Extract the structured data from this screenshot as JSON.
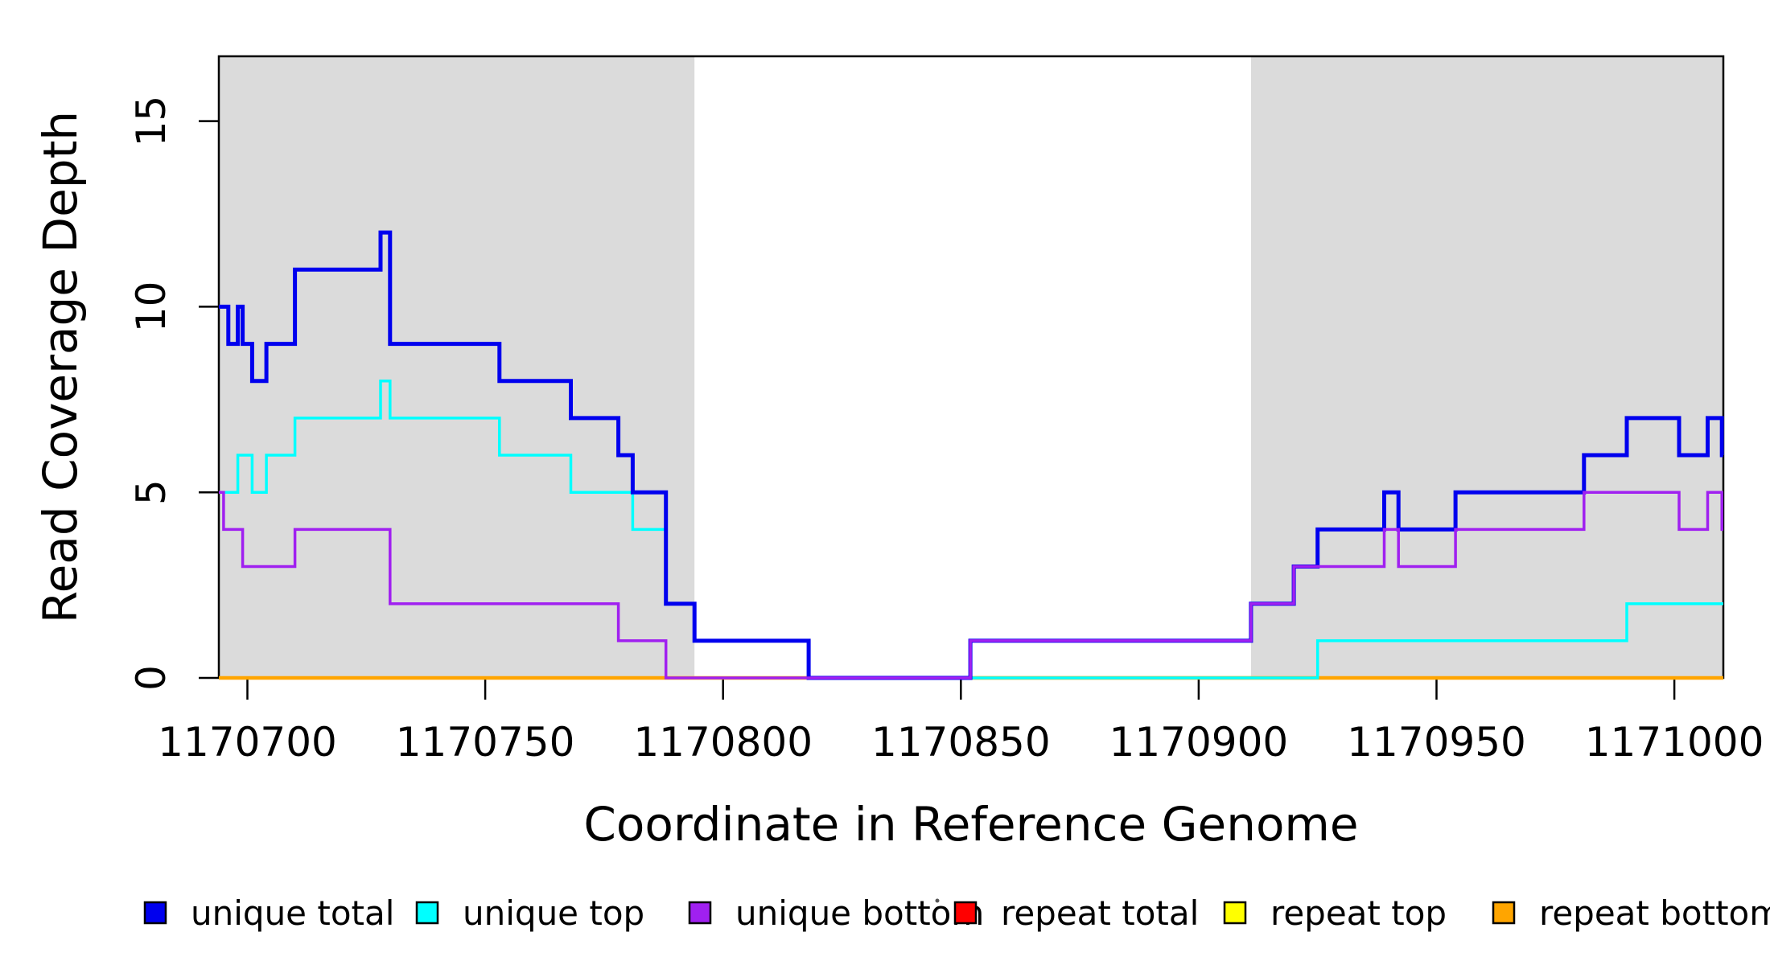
{
  "chart_data": {
    "type": "line",
    "subtype": "step",
    "title": "",
    "xlabel": "Coordinate in Reference Genome",
    "ylabel": "Read Coverage Depth",
    "xlim": [
      1170694,
      1171010.3
    ],
    "ylim": [
      0,
      16.7
    ],
    "x_end": 1171010.3,
    "x_ticks": [
      1170700,
      1170750,
      1170800,
      1170850,
      1170900,
      1170950,
      1171000
    ],
    "y_ticks": [
      0,
      5,
      10,
      15
    ],
    "grid": false,
    "legend_position": "bottom",
    "colors": {
      "shaded_region": "#dbdbdb",
      "axis": "#000000",
      "background": "#ffffff"
    },
    "shaded_regions": [
      {
        "from": 1170694,
        "to": 1170794
      },
      {
        "from": 1170911,
        "to": 1171010.3
      }
    ],
    "series": [
      {
        "id": "unique_total",
        "name": "unique total",
        "color": "#0000ee",
        "width": 5,
        "steps": [
          [
            1170694,
            10
          ],
          [
            1170696,
            9
          ],
          [
            1170698,
            10
          ],
          [
            1170699,
            9
          ],
          [
            1170701,
            8
          ],
          [
            1170704,
            9
          ],
          [
            1170710,
            11
          ],
          [
            1170728,
            12
          ],
          [
            1170730,
            9
          ],
          [
            1170753,
            8
          ],
          [
            1170768,
            7
          ],
          [
            1170778,
            6
          ],
          [
            1170781,
            5
          ],
          [
            1170788,
            2
          ],
          [
            1170794,
            1
          ],
          [
            1170818,
            0
          ],
          [
            1170852,
            1
          ],
          [
            1170911,
            2
          ],
          [
            1170920,
            3
          ],
          [
            1170925,
            4
          ],
          [
            1170939,
            5
          ],
          [
            1170942,
            4
          ],
          [
            1170954,
            5
          ],
          [
            1170981,
            6
          ],
          [
            1170990,
            7
          ],
          [
            1171001,
            6
          ],
          [
            1171007,
            7
          ],
          [
            1171010,
            6
          ]
        ]
      },
      {
        "id": "unique_top",
        "name": "unique top",
        "color": "#00ffff",
        "width": 3.5,
        "steps": [
          [
            1170694,
            5
          ],
          [
            1170698,
            6
          ],
          [
            1170701,
            5
          ],
          [
            1170704,
            6
          ],
          [
            1170710,
            7
          ],
          [
            1170728,
            8
          ],
          [
            1170730,
            7
          ],
          [
            1170753,
            6
          ],
          [
            1170768,
            5
          ],
          [
            1170781,
            4
          ],
          [
            1170788,
            2
          ],
          [
            1170794,
            1
          ],
          [
            1170818,
            0
          ],
          [
            1170925,
            1
          ],
          [
            1170990,
            2
          ]
        ]
      },
      {
        "id": "unique_bottom",
        "name": "unique bottom",
        "color": "#a020f0",
        "width": 3.5,
        "steps": [
          [
            1170694,
            5
          ],
          [
            1170695,
            4
          ],
          [
            1170699,
            3
          ],
          [
            1170710,
            4
          ],
          [
            1170730,
            2
          ],
          [
            1170778,
            1
          ],
          [
            1170788,
            0
          ],
          [
            1170852,
            1
          ],
          [
            1170911,
            2
          ],
          [
            1170920,
            3
          ],
          [
            1170939,
            4
          ],
          [
            1170942,
            3
          ],
          [
            1170954,
            4
          ],
          [
            1170981,
            5
          ],
          [
            1171001,
            4
          ],
          [
            1171007,
            5
          ],
          [
            1171010,
            4
          ]
        ]
      },
      {
        "id": "repeat_total",
        "name": "repeat total",
        "color": "#ff0000",
        "width": 3,
        "steps": [
          [
            1170694,
            0
          ]
        ]
      },
      {
        "id": "repeat_top",
        "name": "repeat top",
        "color": "#ffff00",
        "width": 3,
        "steps": [
          [
            1170694,
            0
          ]
        ]
      },
      {
        "id": "repeat_bottom",
        "name": "repeat bottom",
        "color": "#ffa500",
        "width": 4.5,
        "steps": [
          [
            1170694,
            0
          ]
        ]
      }
    ],
    "draw_order": [
      "repeat_total",
      "repeat_top",
      "repeat_bottom",
      "unique_top",
      "unique_total",
      "unique_bottom"
    ],
    "legend": {
      "items": [
        {
          "label": "unique total",
          "color": "#0000ee"
        },
        {
          "label": "unique top",
          "color": "#00ffff"
        },
        {
          "label": "unique bottom",
          "color": "#a020f0"
        },
        {
          "label": "repeat total",
          "color": "#ff0000"
        },
        {
          "label": "repeat top",
          "color": "#ffff00"
        },
        {
          "label": "repeat bottom",
          "color": "#ffa500"
        }
      ]
    }
  }
}
